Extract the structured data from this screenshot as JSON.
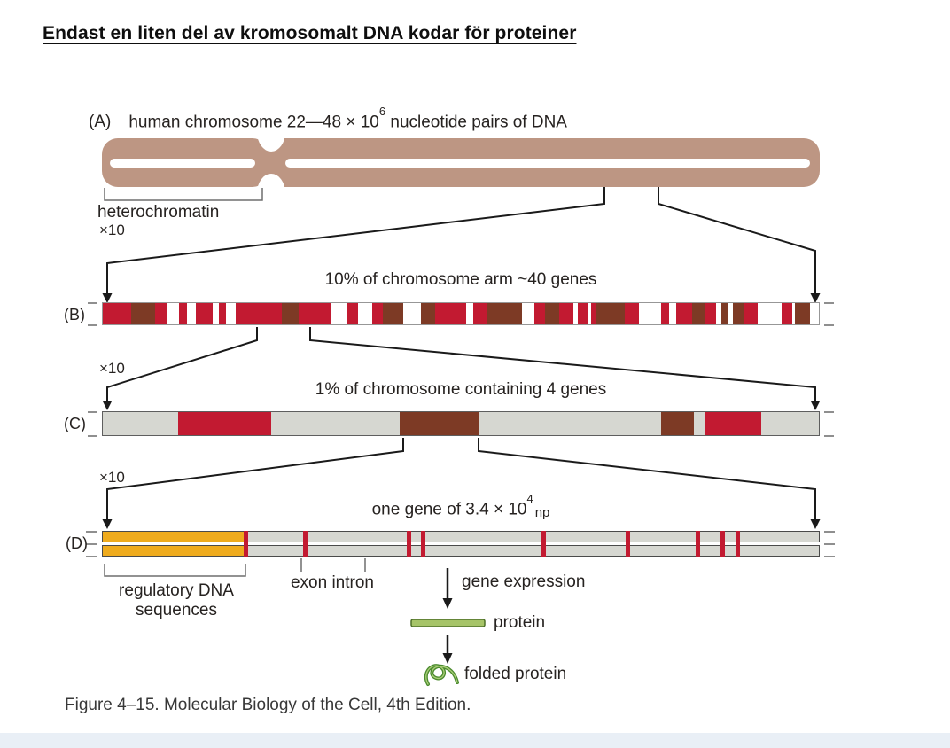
{
  "title": "Endast en liten del av kromosomalt DNA kodar för proteiner",
  "colors": {
    "red": "#c21a31",
    "brown": "#7d3a25",
    "white": "#ffffff",
    "gray": "#d6d7d1",
    "tan": "#bd9683",
    "orange": "#efab1d",
    "green_fill": "#a6c468",
    "green_stroke": "#4e7029",
    "line": "#1a1a1a"
  },
  "figure": {
    "zoom_label": "×10",
    "panel_a": {
      "label": "(A)",
      "caption_prefix": "human chromosome 22—48 × 10",
      "caption_sup": "6",
      "caption_suffix": " nucleotide pairs of DNA",
      "heterochromatin_label": "heterochromatin"
    },
    "panel_b": {
      "label": "(B)",
      "title": "10% of chromosome arm ~40 genes",
      "segments": [
        {
          "c": "red",
          "w": 4
        },
        {
          "c": "brown",
          "w": 3.5
        },
        {
          "c": "red",
          "w": 1.8
        },
        {
          "c": "white",
          "w": 1.6
        },
        {
          "c": "red",
          "w": 1.2
        },
        {
          "c": "white",
          "w": 1.2
        },
        {
          "c": "red",
          "w": 2.5
        },
        {
          "c": "white",
          "w": 0.8
        },
        {
          "c": "red",
          "w": 1
        },
        {
          "c": "white",
          "w": 1.5
        },
        {
          "c": "red",
          "w": 6.5
        },
        {
          "c": "brown",
          "w": 2.5
        },
        {
          "c": "red",
          "w": 4.5
        },
        {
          "c": "white",
          "w": 2.5
        },
        {
          "c": "red",
          "w": 1.5
        },
        {
          "c": "white",
          "w": 2
        },
        {
          "c": "red",
          "w": 1.5
        },
        {
          "c": "brown",
          "w": 3
        },
        {
          "c": "white",
          "w": 2.5
        },
        {
          "c": "brown",
          "w": 2
        },
        {
          "c": "red",
          "w": 4.5
        },
        {
          "c": "white",
          "w": 1
        },
        {
          "c": "red",
          "w": 2
        },
        {
          "c": "brown",
          "w": 5
        },
        {
          "c": "white",
          "w": 1.8
        },
        {
          "c": "red",
          "w": 1.5
        },
        {
          "c": "brown",
          "w": 2
        },
        {
          "c": "red",
          "w": 2
        },
        {
          "c": "white",
          "w": 0.7
        },
        {
          "c": "red",
          "w": 1.5
        },
        {
          "c": "white",
          "w": 0.4
        },
        {
          "c": "red",
          "w": 0.8
        },
        {
          "c": "brown",
          "w": 4
        },
        {
          "c": "red",
          "w": 2
        },
        {
          "c": "white",
          "w": 3.2
        },
        {
          "c": "red",
          "w": 1.2
        },
        {
          "c": "white",
          "w": 1
        },
        {
          "c": "red",
          "w": 2.2
        },
        {
          "c": "brown",
          "w": 2
        },
        {
          "c": "red",
          "w": 1.5
        },
        {
          "c": "white",
          "w": 0.8
        },
        {
          "c": "brown",
          "w": 1
        },
        {
          "c": "white",
          "w": 0.6
        },
        {
          "c": "brown",
          "w": 1.5
        },
        {
          "c": "red",
          "w": 2
        },
        {
          "c": "white",
          "w": 3.5
        },
        {
          "c": "red",
          "w": 1.5
        },
        {
          "c": "white",
          "w": 0.4
        },
        {
          "c": "brown",
          "w": 2.2
        },
        {
          "c": "white",
          "w": 1.2
        }
      ]
    },
    "panel_c": {
      "label": "(C)",
      "title": "1% of chromosome containing 4 genes",
      "segments": [
        {
          "c": "gray",
          "w": 10.5
        },
        {
          "c": "red",
          "w": 13
        },
        {
          "c": "gray",
          "w": 18
        },
        {
          "c": "brown",
          "w": 11
        },
        {
          "c": "gray",
          "w": 25.5
        },
        {
          "c": "brown",
          "w": 4.5
        },
        {
          "c": "gray",
          "w": 1.5
        },
        {
          "c": "red",
          "w": 8
        },
        {
          "c": "gray",
          "w": 8
        }
      ]
    },
    "panel_d": {
      "label": "(D)",
      "title_prefix": "one gene of 3.4 × 10",
      "title_sup": "4",
      "title_unit": "np",
      "orange_fraction_pct": 20,
      "exon_tick_positions_pct": [
        19.8,
        28,
        42.5,
        44.5,
        61.2,
        73,
        82.7,
        86.2,
        88.3
      ],
      "regulatory_line1": "regulatory DNA",
      "regulatory_line2": "sequences",
      "exon_intron_label": "exon intron",
      "gene_expression_label": "gene expression",
      "protein_label": "protein",
      "folded_protein_label": "folded protein"
    },
    "caption": "Figure 4–15. Molecular Biology of the Cell, 4th Edition."
  }
}
